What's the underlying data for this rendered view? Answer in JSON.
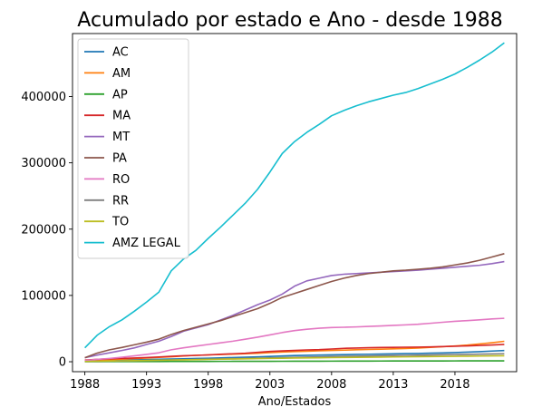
{
  "chart_data": {
    "type": "line",
    "title": "Acumulado por estado e Ano - desde 1988",
    "xlabel": "Ano/Estados",
    "ylabel": "",
    "xlim": [
      1987,
      2023
    ],
    "ylim": [
      -15000,
      495000
    ],
    "xticks": [
      1988,
      1993,
      1998,
      2003,
      2008,
      2013,
      2018
    ],
    "yticks": [
      0,
      100000,
      200000,
      300000,
      400000
    ],
    "grid": false,
    "legend_position": "top-left",
    "x": [
      1988,
      1989,
      1990,
      1991,
      1992,
      1993,
      1994,
      1995,
      1996,
      1997,
      1998,
      1999,
      2000,
      2001,
      2002,
      2003,
      2004,
      2005,
      2006,
      2007,
      2008,
      2009,
      2010,
      2011,
      2012,
      2013,
      2014,
      2015,
      2016,
      2017,
      2018,
      2019,
      2020,
      2021,
      2022
    ],
    "series": [
      {
        "name": "AC",
        "color": "#1f77b4",
        "values": [
          900,
          1600,
          2100,
          2500,
          2900,
          3300,
          3700,
          4100,
          4500,
          4900,
          5300,
          5800,
          6300,
          6800,
          7400,
          8000,
          8700,
          9300,
          9700,
          10100,
          10400,
          10700,
          11000,
          11300,
          11600,
          11900,
          12200,
          12500,
          12900,
          13300,
          13800,
          14500,
          15200,
          16100,
          16900
        ]
      },
      {
        "name": "AM",
        "color": "#ff7f0e",
        "values": [
          1200,
          2000,
          2900,
          3800,
          4700,
          5600,
          6600,
          7500,
          8600,
          9600,
          10300,
          10800,
          11400,
          12100,
          12800,
          13700,
          14600,
          15300,
          15900,
          16500,
          17100,
          17500,
          18000,
          18500,
          18900,
          19400,
          19900,
          20600,
          21600,
          22700,
          23800,
          25100,
          26900,
          28700,
          30800
        ]
      },
      {
        "name": "AP",
        "color": "#2ca02c",
        "values": [
          100,
          150,
          200,
          250,
          280,
          300,
          340,
          380,
          420,
          460,
          500,
          540,
          580,
          620,
          660,
          700,
          740,
          780,
          820,
          860,
          900,
          940,
          980,
          1020,
          1060,
          1100,
          1130,
          1160,
          1190,
          1220,
          1250,
          1280,
          1310,
          1340,
          1370
        ]
      },
      {
        "name": "MA",
        "color": "#d62728",
        "values": [
          2500,
          3500,
          4400,
          5000,
          5600,
          6300,
          7200,
          8200,
          9000,
          9600,
          10300,
          11200,
          12000,
          12800,
          14200,
          15500,
          16300,
          17100,
          17800,
          18200,
          19200,
          20200,
          20700,
          21200,
          21500,
          21700,
          21900,
          22100,
          22400,
          22900,
          23400,
          23900,
          24500,
          25200,
          26100
        ]
      },
      {
        "name": "MT",
        "color": "#9467bd",
        "values": [
          6000,
          10000,
          13500,
          17000,
          20800,
          26000,
          31000,
          38000,
          46000,
          51000,
          56000,
          63000,
          70000,
          78000,
          86000,
          93000,
          102000,
          114000,
          122000,
          126000,
          130000,
          132000,
          133000,
          134000,
          135000,
          136000,
          137000,
          138000,
          139500,
          141000,
          142500,
          144000,
          145500,
          148000,
          151000
        ]
      },
      {
        "name": "PA",
        "color": "#8c564b",
        "values": [
          6000,
          13000,
          18000,
          21500,
          25500,
          29500,
          34000,
          41000,
          47000,
          52000,
          57000,
          62000,
          68000,
          74000,
          80000,
          88000,
          97000,
          103000,
          109000,
          115000,
          121000,
          126000,
          130000,
          133000,
          135000,
          137000,
          138000,
          139500,
          141000,
          143000,
          146000,
          149000,
          153000,
          158000,
          163000
        ]
      },
      {
        "name": "RO",
        "color": "#e377c2",
        "values": [
          1800,
          3500,
          5000,
          6800,
          8800,
          11000,
          13500,
          18000,
          21000,
          23500,
          26000,
          28500,
          31000,
          34000,
          37000,
          40500,
          44000,
          47000,
          49000,
          50500,
          51500,
          52000,
          52500,
          53300,
          54000,
          54800,
          55600,
          56500,
          58000,
          59500,
          61000,
          62000,
          63200,
          64600,
          65500
        ]
      },
      {
        "name": "RR",
        "color": "#7f7f7f",
        "values": [
          300,
          600,
          900,
          1200,
          1500,
          1800,
          2200,
          2600,
          3000,
          3400,
          3800,
          4200,
          4600,
          5000,
          5400,
          5800,
          6200,
          6600,
          7000,
          7400,
          7800,
          8100,
          8400,
          8700,
          9000,
          9300,
          9600,
          9900,
          10200,
          10500,
          10800,
          11100,
          11400,
          11700,
          12000
        ]
      },
      {
        "name": "TO",
        "color": "#bcbd22",
        "values": [
          400,
          800,
          1100,
          1400,
          1700,
          2000,
          2300,
          2600,
          2900,
          3200,
          3500,
          3800,
          4100,
          4400,
          4700,
          5000,
          5300,
          5600,
          5800,
          6000,
          6200,
          6400,
          6600,
          6800,
          7000,
          7200,
          7400,
          7600,
          7800,
          8000,
          8200,
          8400,
          8600,
          8800,
          9000
        ]
      },
      {
        "name": "AMZ LEGAL",
        "color": "#17becf",
        "values": [
          21000,
          40000,
          53000,
          63000,
          76000,
          90000,
          105000,
          137000,
          155000,
          168000,
          186000,
          203000,
          221000,
          239000,
          260000,
          286000,
          314000,
          332000,
          346000,
          358000,
          371000,
          379000,
          386000,
          392000,
          397000,
          402000,
          406000,
          412000,
          419000,
          426000,
          434000,
          444000,
          455000,
          467000,
          481000
        ]
      }
    ]
  }
}
